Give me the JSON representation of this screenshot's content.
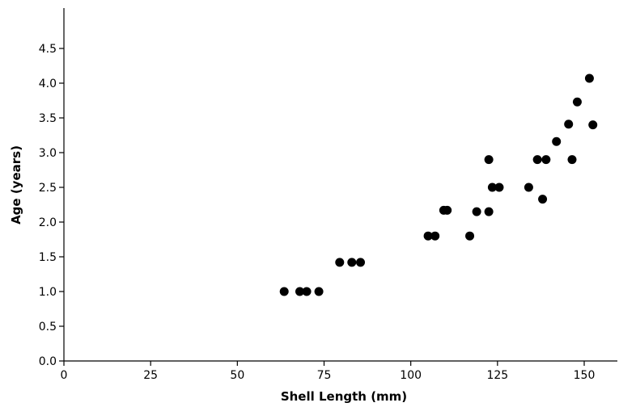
{
  "chart_data": {
    "type": "scatter",
    "title": "",
    "xlabel": "Shell Length (mm)",
    "ylabel": "Age (years)",
    "xlim": [
      0,
      160
    ],
    "ylim": [
      0,
      5
    ],
    "x_ticks": [
      "0",
      "25",
      "50",
      "75",
      "100",
      "125",
      "150"
    ],
    "y_ticks": [
      "0.0",
      "0.5",
      "1.0",
      "1.5",
      "2.0",
      "2.5",
      "3.0",
      "3.5",
      "4.0",
      "4.5"
    ],
    "grid": false,
    "legend": "none",
    "marker_color": "#000000",
    "series": [
      {
        "x": [
          63.5,
          68,
          70,
          73.5,
          79.5,
          83,
          85.5,
          105,
          107,
          109.5,
          110.5,
          117,
          119,
          122.5,
          122.5,
          123.5,
          125.5,
          134,
          136.5,
          138,
          139,
          142,
          145.5,
          146.5,
          148,
          151.5,
          152.5
        ],
        "y": [
          1.0,
          1.0,
          1.0,
          1.0,
          1.42,
          1.42,
          1.42,
          1.8,
          1.8,
          2.17,
          2.17,
          1.8,
          2.15,
          2.15,
          2.9,
          2.5,
          2.5,
          2.5,
          2.9,
          2.33,
          2.9,
          3.16,
          3.41,
          2.9,
          3.73,
          4.07,
          3.4
        ]
      }
    ]
  }
}
